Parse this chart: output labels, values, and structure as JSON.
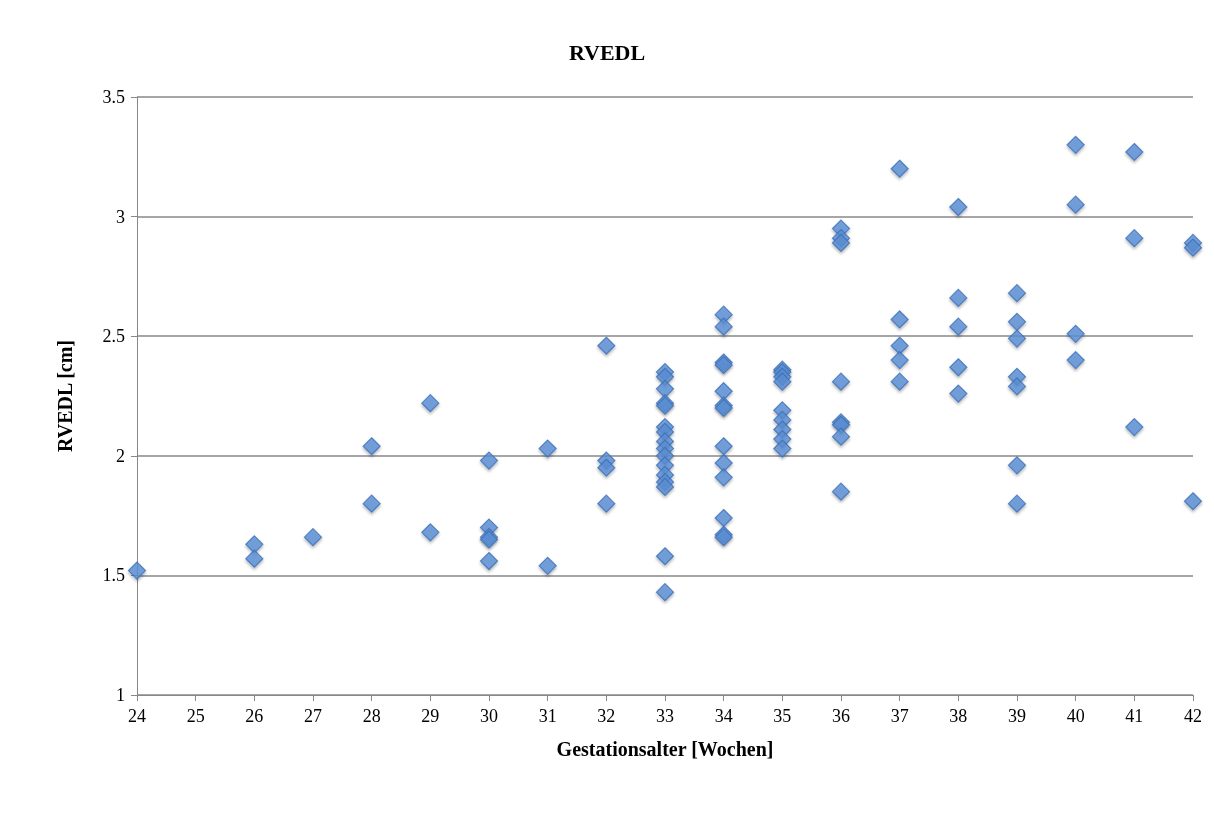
{
  "chart_data": {
    "type": "scatter",
    "title": "RVEDL",
    "xlabel": "Gestationsalter [Wochen]",
    "ylabel": "RVEDL [cm]",
    "x": [
      24,
      26,
      26,
      27,
      28,
      28,
      29,
      29,
      30,
      30,
      30,
      30,
      30,
      31,
      31,
      32,
      32,
      32,
      32,
      33,
      33,
      33,
      33,
      33,
      33,
      33,
      33,
      33,
      33,
      33,
      33,
      33,
      33,
      33,
      33,
      34,
      34,
      34,
      34,
      34,
      34,
      34,
      34,
      34,
      34,
      34,
      34,
      34,
      35,
      35,
      35,
      35,
      35,
      35,
      35,
      35,
      35,
      36,
      36,
      36,
      36,
      36,
      36,
      36,
      36,
      37,
      37,
      37,
      37,
      37,
      38,
      38,
      38,
      38,
      38,
      39,
      39,
      39,
      39,
      39,
      39,
      39,
      40,
      40,
      40,
      40,
      41,
      41,
      41,
      42,
      42,
      42
    ],
    "values": [
      1.52,
      1.63,
      1.57,
      1.66,
      2.04,
      1.8,
      2.22,
      1.68,
      1.98,
      1.7,
      1.66,
      1.65,
      1.56,
      2.03,
      1.54,
      2.46,
      1.98,
      1.95,
      1.8,
      2.35,
      2.33,
      2.28,
      2.22,
      2.21,
      2.12,
      2.1,
      2.06,
      2.03,
      2.0,
      1.96,
      1.92,
      1.89,
      1.87,
      1.58,
      1.43,
      2.59,
      2.54,
      2.39,
      2.38,
      2.27,
      2.21,
      2.2,
      2.04,
      1.97,
      1.91,
      1.74,
      1.67,
      1.66,
      2.36,
      2.35,
      2.33,
      2.31,
      2.19,
      2.15,
      2.11,
      2.07,
      2.03,
      2.95,
      2.91,
      2.89,
      2.31,
      2.14,
      2.13,
      2.08,
      1.85,
      3.2,
      2.57,
      2.46,
      2.4,
      2.31,
      3.04,
      2.66,
      2.54,
      2.37,
      2.26,
      2.68,
      2.56,
      2.49,
      2.33,
      2.29,
      1.96,
      1.8,
      3.3,
      3.05,
      2.51,
      2.4,
      3.27,
      2.91,
      2.12,
      2.89,
      2.87,
      1.81
    ],
    "color": "#5b8fd6",
    "marker": "diamond",
    "xlim": [
      24,
      42
    ],
    "xticks": [
      24,
      25,
      26,
      27,
      28,
      29,
      30,
      31,
      32,
      33,
      34,
      35,
      36,
      37,
      38,
      39,
      40,
      41,
      42
    ],
    "ylim": [
      1,
      3.5
    ],
    "yticks": [
      1,
      1.5,
      2,
      2.5,
      3,
      3.5
    ],
    "grid": "y"
  }
}
